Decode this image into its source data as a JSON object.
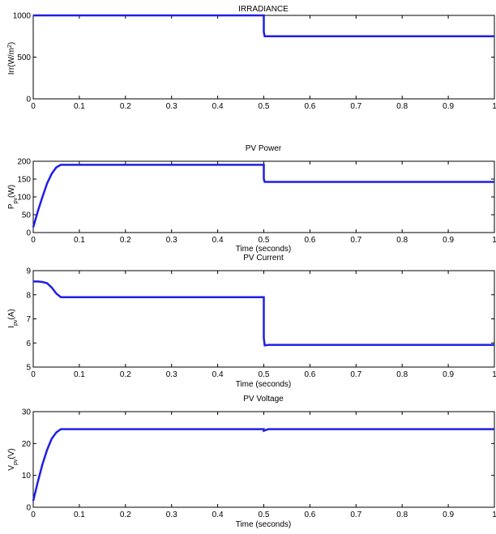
{
  "colors": {
    "line": "#1f1fe6",
    "axes": "#000000",
    "background": "#ffffff"
  },
  "chart_data": [
    {
      "type": "line",
      "title": "IRRADIANCE",
      "xlabel": "",
      "ylabel": {
        "base": "Irr(W/m",
        "sup": "2",
        "tail": ")"
      },
      "xlim": [
        0,
        1
      ],
      "ylim": [
        0,
        1000
      ],
      "xticks": [
        "0",
        "0.1",
        "0.2",
        "0.3",
        "0.4",
        "0.5",
        "0.6",
        "0.7",
        "0.8",
        "0.9",
        "1"
      ],
      "yticks": [
        "0",
        "500",
        "1000"
      ],
      "series": [
        {
          "x": [
            0,
            0.5,
            0.5,
            0.502,
            1
          ],
          "y": [
            1000,
            1000,
            800,
            750,
            750
          ]
        }
      ]
    },
    {
      "type": "line",
      "title": "PV Power",
      "xlabel": "Time (seconds)",
      "ylabel": {
        "base": "P",
        "sub": "pv",
        "tail": "(W)"
      },
      "xlim": [
        0,
        1
      ],
      "ylim": [
        0,
        200
      ],
      "xticks": [
        "0",
        "0.1",
        "0.2",
        "0.3",
        "0.4",
        "0.5",
        "0.6",
        "0.7",
        "0.8",
        "0.9",
        "1"
      ],
      "yticks": [
        "0",
        "50",
        "100",
        "150",
        "200"
      ],
      "series": [
        {
          "x": [
            0,
            0.01,
            0.02,
            0.03,
            0.04,
            0.05,
            0.06,
            0.5,
            0.5,
            0.502,
            1
          ],
          "y": [
            15,
            60,
            100,
            138,
            165,
            183,
            190,
            190,
            150,
            142,
            142
          ]
        }
      ]
    },
    {
      "type": "line",
      "title": "PV Current",
      "xlabel": "Time (seconds)",
      "ylabel": {
        "base": "I",
        "sub": "pv",
        "tail": "(A)"
      },
      "xlim": [
        0,
        1
      ],
      "ylim": [
        5,
        9
      ],
      "xticks": [
        "0",
        "0.1",
        "0.2",
        "0.3",
        "0.4",
        "0.5",
        "0.6",
        "0.7",
        "0.8",
        "0.9",
        "1"
      ],
      "yticks": [
        "5",
        "6",
        "7",
        "8",
        "9"
      ],
      "series": [
        {
          "x": [
            0,
            0.01,
            0.02,
            0.03,
            0.04,
            0.05,
            0.06,
            0.5,
            0.5,
            0.502,
            0.51,
            1
          ],
          "y": [
            8.55,
            8.55,
            8.53,
            8.48,
            8.3,
            8.05,
            7.9,
            7.9,
            6.2,
            5.9,
            5.92,
            5.92
          ]
        }
      ]
    },
    {
      "type": "line",
      "title": "PV Voltage",
      "xlabel": "Time (seconds)",
      "ylabel": {
        "base": "V",
        "sub": "pv",
        "tail": "(V)"
      },
      "xlim": [
        0,
        1
      ],
      "ylim": [
        0,
        30
      ],
      "xticks": [
        "0",
        "0.1",
        "0.2",
        "0.3",
        "0.4",
        "0.5",
        "0.6",
        "0.7",
        "0.8",
        "0.9",
        "1"
      ],
      "yticks": [
        "0",
        "10",
        "20",
        "30"
      ],
      "series": [
        {
          "x": [
            0,
            0.01,
            0.02,
            0.03,
            0.04,
            0.05,
            0.06,
            0.5,
            0.5,
            0.51,
            1
          ],
          "y": [
            2,
            8,
            13.5,
            18,
            21.5,
            23.5,
            24.5,
            24.5,
            24,
            24.5,
            24.5
          ]
        }
      ]
    }
  ]
}
